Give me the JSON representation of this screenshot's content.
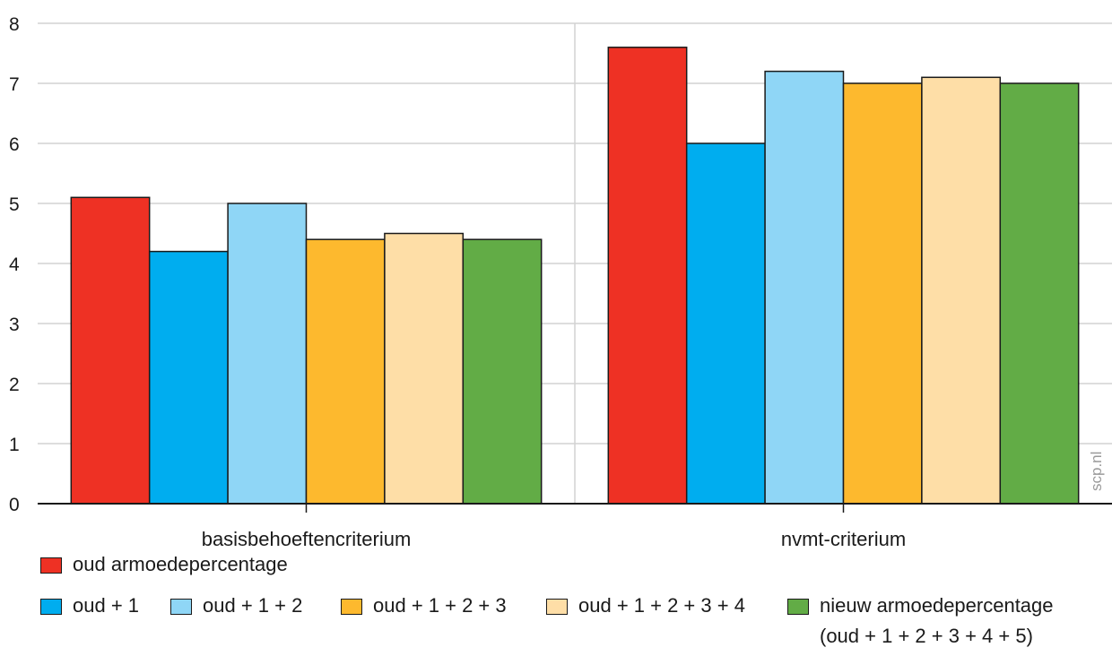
{
  "chart_data": {
    "type": "bar",
    "categories": [
      "basisbehoeftencriterium",
      "nvmt-criterium"
    ],
    "series": [
      {
        "name": "oud armoedepercentage",
        "color": "#ee3124",
        "values": [
          5.1,
          7.6
        ]
      },
      {
        "name": "oud + 1",
        "color": "#00adef",
        "values": [
          4.2,
          6.0
        ]
      },
      {
        "name": "oud + 1 + 2",
        "color": "#8fd6f6",
        "values": [
          5.0,
          7.2
        ]
      },
      {
        "name": "oud + 1 + 2 + 3",
        "color": "#fdb92e",
        "values": [
          4.4,
          7.0
        ]
      },
      {
        "name": "oud + 1 + 2 + 3 + 4",
        "color": "#fedea7",
        "values": [
          4.5,
          7.1
        ]
      },
      {
        "name": "nieuw armoedepercentage",
        "name_line2": "(oud + 1 + 2 + 3 + 4 + 5)",
        "color": "#62ac46",
        "values": [
          4.4,
          7.0
        ]
      }
    ],
    "yticks": [
      "0",
      "1",
      "2",
      "3",
      "4",
      "5",
      "6",
      "7",
      "8"
    ],
    "ylim": [
      0,
      8
    ],
    "grid": true,
    "legend_position": "bottom"
  },
  "watermark": "scp.nl"
}
